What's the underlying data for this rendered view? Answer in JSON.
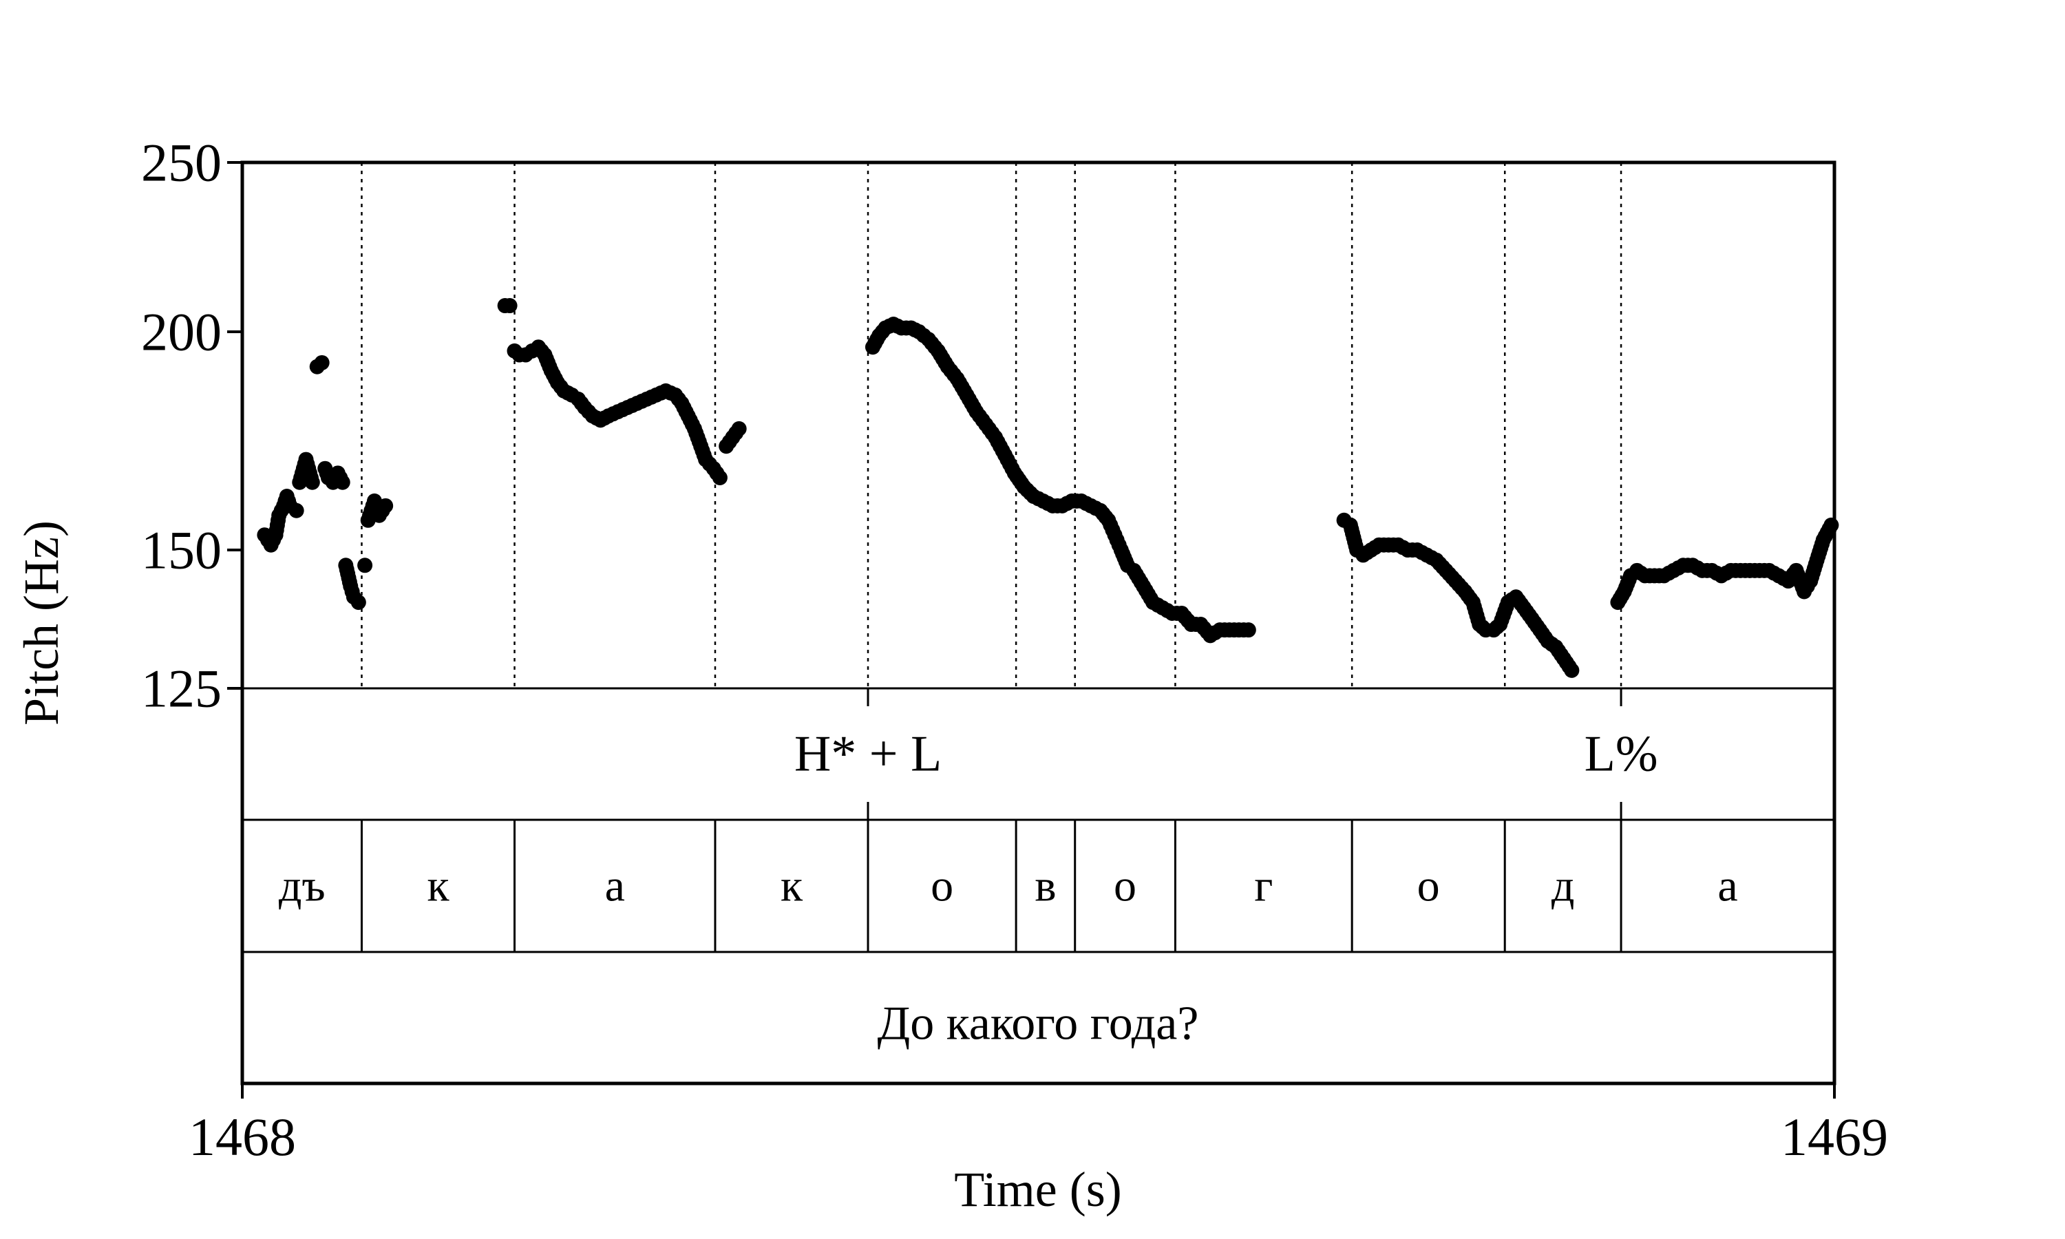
{
  "chart_data": {
    "type": "scatter",
    "title": "",
    "xlabel": "Time (s)",
    "ylabel": "Pitch (Hz)",
    "xlim": [
      1468,
      1469
    ],
    "ylim": [
      125,
      250
    ],
    "y_scale": "log",
    "x_ticks": [
      "1468",
      "1469"
    ],
    "y_ticks": [
      {
        "value": 125,
        "label": "125"
      },
      {
        "value": 150,
        "label": "150"
      },
      {
        "value": 200,
        "label": "200"
      },
      {
        "value": 250,
        "label": "250"
      }
    ],
    "grid": false,
    "segment_boundaries": [
      1468.075,
      1468.171,
      1468.297,
      1468.393,
      1468.486,
      1468.523,
      1468.586,
      1468.697,
      1468.793,
      1468.866
    ],
    "tone_tier": {
      "boundaries": [
        1468.393,
        1468.866
      ],
      "labels": [
        {
          "text": "H* + L",
          "x": 1468.393
        },
        {
          "text": "L%",
          "x": 1468.866
        }
      ]
    },
    "segment_tier": [
      {
        "label": "дъ",
        "start": 1468.0,
        "end": 1468.075
      },
      {
        "label": "к",
        "start": 1468.075,
        "end": 1468.171
      },
      {
        "label": "а",
        "start": 1468.171,
        "end": 1468.297
      },
      {
        "label": "к",
        "start": 1468.297,
        "end": 1468.393
      },
      {
        "label": "о",
        "start": 1468.393,
        "end": 1468.486
      },
      {
        "label": "в",
        "start": 1468.486,
        "end": 1468.523
      },
      {
        "label": "о",
        "start": 1468.523,
        "end": 1468.586
      },
      {
        "label": "г",
        "start": 1468.586,
        "end": 1468.697
      },
      {
        "label": "о",
        "start": 1468.697,
        "end": 1468.793
      },
      {
        "label": "д",
        "start": 1468.793,
        "end": 1468.866
      },
      {
        "label": "а",
        "start": 1468.866,
        "end": 1469.0
      }
    ],
    "sentence_tier": {
      "label": "До какого года?",
      "start": 1468.0,
      "end": 1469.0
    },
    "series": [
      {
        "points": [
          [
            1468.014,
            153
          ],
          [
            1468.016,
            152
          ],
          [
            1468.018,
            151
          ],
          [
            1468.021,
            153
          ],
          [
            1468.023,
            157
          ],
          [
            1468.026,
            159
          ],
          [
            1468.028,
            161
          ],
          [
            1468.03,
            159
          ],
          [
            1468.034,
            158
          ],
          [
            1468.036,
            164
          ],
          [
            1468.04,
            169
          ],
          [
            1468.044,
            164
          ],
          [
            1468.047,
            191
          ],
          [
            1468.05,
            192
          ],
          [
            1468.052,
            167
          ],
          [
            1468.054,
            165
          ],
          [
            1468.057,
            164
          ],
          [
            1468.06,
            166
          ],
          [
            1468.063,
            164
          ],
          [
            1468.065,
            147
          ],
          [
            1468.068,
            143
          ],
          [
            1468.07,
            141
          ],
          [
            1468.073,
            140
          ],
          [
            1468.077,
            147
          ],
          [
            1468.079,
            156
          ],
          [
            1468.083,
            160
          ],
          [
            1468.086,
            157
          ],
          [
            1468.09,
            159
          ]
        ]
      },
      {
        "points": [
          [
            1468.165,
            207
          ],
          [
            1468.168,
            207
          ],
          [
            1468.171,
            195
          ],
          [
            1468.174,
            194
          ],
          [
            1468.178,
            194
          ],
          [
            1468.182,
            195
          ],
          [
            1468.186,
            196
          ],
          [
            1468.19,
            194
          ],
          [
            1468.194,
            190
          ],
          [
            1468.198,
            187
          ],
          [
            1468.202,
            185
          ],
          [
            1468.207,
            184
          ],
          [
            1468.211,
            183
          ],
          [
            1468.215,
            181
          ],
          [
            1468.22,
            179
          ],
          [
            1468.225,
            178
          ],
          [
            1468.23,
            179
          ],
          [
            1468.236,
            180
          ],
          [
            1468.242,
            181
          ],
          [
            1468.248,
            182
          ],
          [
            1468.254,
            183
          ],
          [
            1468.26,
            184
          ],
          [
            1468.266,
            185
          ],
          [
            1468.272,
            184
          ],
          [
            1468.276,
            182
          ],
          [
            1468.28,
            179
          ],
          [
            1468.284,
            176
          ],
          [
            1468.287,
            173
          ],
          [
            1468.291,
            169
          ],
          [
            1468.296,
            167
          ],
          [
            1468.3,
            165
          ],
          [
            1468.304,
            172
          ],
          [
            1468.308,
            174
          ],
          [
            1468.312,
            176
          ]
        ]
      },
      {
        "points": [
          [
            1468.396,
            196
          ],
          [
            1468.4,
            199
          ],
          [
            1468.404,
            201
          ],
          [
            1468.409,
            202
          ],
          [
            1468.414,
            201
          ],
          [
            1468.42,
            201
          ],
          [
            1468.425,
            200
          ],
          [
            1468.431,
            198
          ],
          [
            1468.437,
            195
          ],
          [
            1468.443,
            191
          ],
          [
            1468.449,
            188
          ],
          [
            1468.455,
            184
          ],
          [
            1468.461,
            180
          ],
          [
            1468.467,
            177
          ],
          [
            1468.473,
            174
          ],
          [
            1468.479,
            170
          ],
          [
            1468.485,
            166
          ],
          [
            1468.491,
            163
          ],
          [
            1468.497,
            161
          ],
          [
            1468.503,
            160
          ],
          [
            1468.509,
            159
          ],
          [
            1468.515,
            159
          ],
          [
            1468.521,
            160
          ],
          [
            1468.527,
            160
          ],
          [
            1468.533,
            159
          ],
          [
            1468.539,
            158
          ],
          [
            1468.544,
            156
          ],
          [
            1468.548,
            153
          ],
          [
            1468.552,
            150
          ],
          [
            1468.556,
            147
          ],
          [
            1468.56,
            146
          ],
          [
            1468.566,
            143
          ],
          [
            1468.572,
            140
          ],
          [
            1468.578,
            139
          ],
          [
            1468.584,
            138
          ],
          [
            1468.59,
            138
          ],
          [
            1468.596,
            136
          ],
          [
            1468.602,
            136
          ],
          [
            1468.608,
            134
          ],
          [
            1468.614,
            135
          ],
          [
            1468.62,
            135
          ],
          [
            1468.626,
            135
          ],
          [
            1468.632,
            135
          ]
        ]
      },
      {
        "points": [
          [
            1468.692,
            156
          ],
          [
            1468.696,
            155
          ],
          [
            1468.7,
            150
          ],
          [
            1468.704,
            149
          ],
          [
            1468.709,
            150
          ],
          [
            1468.714,
            151
          ],
          [
            1468.72,
            151
          ],
          [
            1468.726,
            151
          ],
          [
            1468.732,
            150
          ],
          [
            1468.738,
            150
          ],
          [
            1468.744,
            149
          ],
          [
            1468.75,
            148
          ],
          [
            1468.756,
            146
          ],
          [
            1468.762,
            144
          ],
          [
            1468.768,
            142
          ],
          [
            1468.773,
            140
          ],
          [
            1468.777,
            136
          ],
          [
            1468.781,
            135
          ],
          [
            1468.786,
            135
          ],
          [
            1468.79,
            136
          ],
          [
            1468.795,
            140
          ],
          [
            1468.8,
            141
          ],
          [
            1468.805,
            139
          ],
          [
            1468.81,
            137
          ],
          [
            1468.815,
            135
          ],
          [
            1468.82,
            133
          ],
          [
            1468.825,
            132
          ],
          [
            1468.83,
            130
          ],
          [
            1468.835,
            128
          ]
        ]
      },
      {
        "points": [
          [
            1468.864,
            140
          ],
          [
            1468.868,
            142
          ],
          [
            1468.872,
            145
          ],
          [
            1468.876,
            146
          ],
          [
            1468.881,
            145
          ],
          [
            1468.887,
            145
          ],
          [
            1468.893,
            145
          ],
          [
            1468.899,
            146
          ],
          [
            1468.905,
            147
          ],
          [
            1468.911,
            147
          ],
          [
            1468.917,
            146
          ],
          [
            1468.923,
            146
          ],
          [
            1468.929,
            145
          ],
          [
            1468.935,
            146
          ],
          [
            1468.941,
            146
          ],
          [
            1468.947,
            146
          ],
          [
            1468.953,
            146
          ],
          [
            1468.959,
            146
          ],
          [
            1468.965,
            145
          ],
          [
            1468.971,
            144
          ],
          [
            1468.976,
            146
          ],
          [
            1468.981,
            142
          ],
          [
            1468.985,
            144
          ],
          [
            1468.989,
            148
          ],
          [
            1468.993,
            152
          ],
          [
            1468.998,
            155
          ]
        ]
      }
    ]
  }
}
